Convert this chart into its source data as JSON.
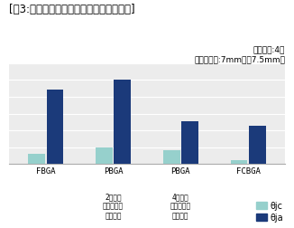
{
  "title": "[嘦3:パッケージ構造による熱抗抗に違い]",
  "annotation": "実装基板:4層\nチップ寸法:7mm角～7.5mm角",
  "categories": [
    "FBGA",
    "PBGA",
    "PBGA",
    "FCBGA"
  ],
  "sublabels": [
    "",
    "2層基板\nサーマル・\nビアなし",
    "4層基板\nサーマル・\nビアあり",
    ""
  ],
  "bjc_values": [
    5,
    8,
    7,
    2
  ],
  "bja_values": [
    37,
    42,
    21,
    19
  ],
  "color_bjc": "#96d0cc",
  "color_bja": "#1b3a7a",
  "legend_bjc": "θjc",
  "legend_bja": "θja",
  "ylim": [
    0,
    50
  ],
  "bg_color": "#ffffff",
  "chart_bg": "#ececec",
  "grid_color": "#ffffff",
  "title_fontsize": 8.5,
  "tick_fontsize": 6.5,
  "annot_fontsize": 6.5,
  "legend_fontsize": 7
}
